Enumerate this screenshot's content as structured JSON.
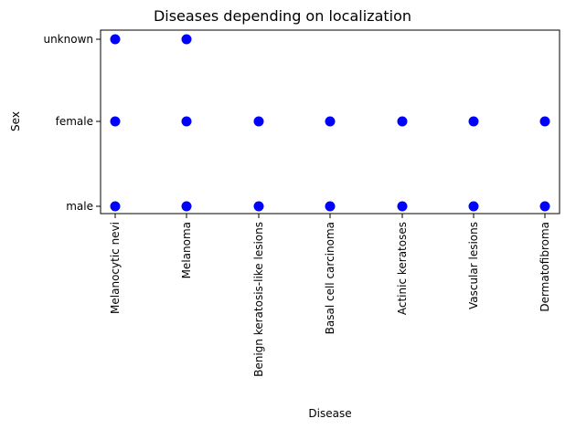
{
  "chart_data": {
    "type": "scatter",
    "title": "Diseases depending on localization",
    "xlabel": "Disease",
    "ylabel": "Sex",
    "categories": [
      "Melanocytic nevi",
      "Melanoma",
      "Benign keratosis-like lesions",
      "Basal cell carcinoma",
      "Actinic keratoses",
      "Vascular lesions",
      "Dermatofibroma"
    ],
    "y_categories": [
      "male",
      "female",
      "unknown"
    ],
    "points": [
      {
        "x": "Melanocytic nevi",
        "y": "unknown"
      },
      {
        "x": "Melanoma",
        "y": "unknown"
      },
      {
        "x": "Melanocytic nevi",
        "y": "female"
      },
      {
        "x": "Melanoma",
        "y": "female"
      },
      {
        "x": "Benign keratosis-like lesions",
        "y": "female"
      },
      {
        "x": "Basal cell carcinoma",
        "y": "female"
      },
      {
        "x": "Actinic keratoses",
        "y": "female"
      },
      {
        "x": "Vascular lesions",
        "y": "female"
      },
      {
        "x": "Dermatofibroma",
        "y": "female"
      },
      {
        "x": "Melanocytic nevi",
        "y": "male"
      },
      {
        "x": "Melanoma",
        "y": "male"
      },
      {
        "x": "Benign keratosis-like lesions",
        "y": "male"
      },
      {
        "x": "Basal cell carcinoma",
        "y": "male"
      },
      {
        "x": "Actinic keratoses",
        "y": "male"
      },
      {
        "x": "Vascular lesions",
        "y": "male"
      },
      {
        "x": "Dermatofibroma",
        "y": "male"
      }
    ],
    "marker_color": "#0000ff",
    "grid": false
  }
}
